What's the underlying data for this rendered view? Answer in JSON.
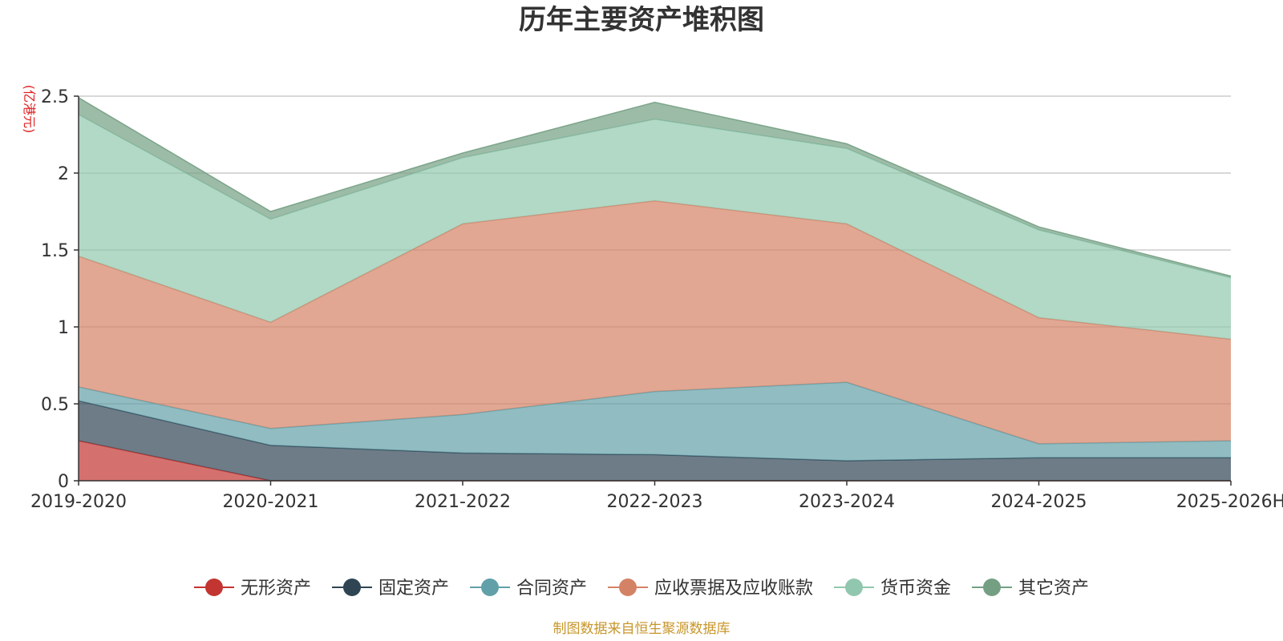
{
  "chart_data": {
    "type": "area",
    "stacked": true,
    "title": "历年主要资产堆积图",
    "y_unit": "(亿港元)",
    "source": "制图数据来自恒生聚源数据库",
    "categories": [
      "2019-2020",
      "2020-2021",
      "2021-2022",
      "2022-2023",
      "2023-2024",
      "2024-2025",
      "2025-2026H"
    ],
    "ylim": [
      0,
      2.5
    ],
    "yticks": [
      0,
      0.5,
      1,
      1.5,
      2,
      2.5
    ],
    "ytick_labels": [
      "0",
      "0.5",
      "1",
      "1.5",
      "2",
      "2.5"
    ],
    "grid": true,
    "legend_position": "bottom",
    "series": [
      {
        "name": "无形资产",
        "color": "#c23531",
        "values": [
          0.26,
          0.0,
          0.0,
          0.0,
          0.0,
          0.0,
          0.0
        ]
      },
      {
        "name": "固定资产",
        "color": "#2f4554",
        "values": [
          0.26,
          0.23,
          0.18,
          0.17,
          0.13,
          0.15,
          0.15
        ]
      },
      {
        "name": "合同资产",
        "color": "#61a0a8",
        "values": [
          0.09,
          0.11,
          0.25,
          0.41,
          0.51,
          0.09,
          0.11
        ]
      },
      {
        "name": "应收票据及应收账款",
        "color": "#d48265",
        "values": [
          0.85,
          0.69,
          1.24,
          1.24,
          1.03,
          0.82,
          0.66
        ]
      },
      {
        "name": "货币资金",
        "color": "#91c7ae",
        "values": [
          0.92,
          0.67,
          0.43,
          0.53,
          0.49,
          0.57,
          0.4
        ]
      },
      {
        "name": "其它资产",
        "color": "#749f83",
        "values": [
          0.11,
          0.05,
          0.03,
          0.11,
          0.03,
          0.02,
          0.01
        ]
      }
    ]
  }
}
